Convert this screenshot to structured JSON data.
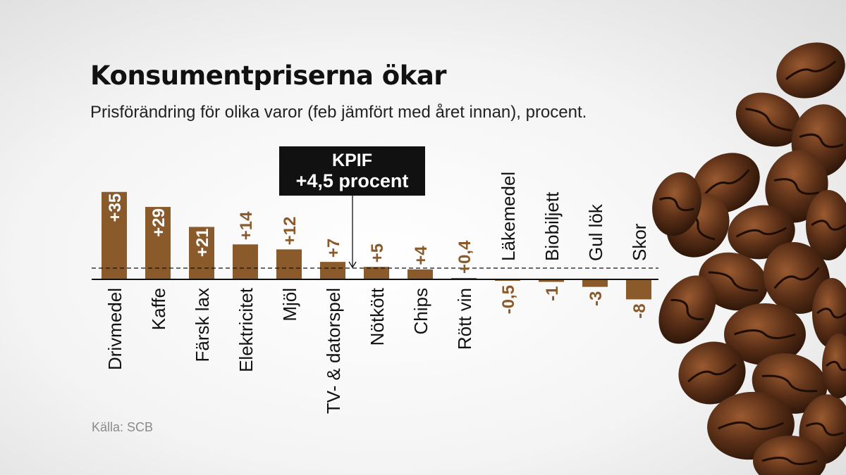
{
  "title": "Konsumentpriserna ökar",
  "subtitle": "Prisförändring för olika varor (feb jämfört med året innan), procent.",
  "source": "Källa: SCB",
  "annotation": {
    "title": "KPIF",
    "value_text": "+4,5 procent",
    "value": 4.5
  },
  "colors": {
    "bar": "#8b5a2b",
    "label_outside": "#8b5a2b",
    "label_inside": "#ffffff",
    "category_text": "#111111"
  },
  "chart_data": {
    "type": "bar",
    "title": "Konsumentpriserna ökar",
    "subtitle": "Prisförändring för olika varor (feb jämfört med året innan), procent.",
    "categories": [
      "Drivmedel",
      "Kaffe",
      "Färsk lax",
      "Elektricitet",
      "Mjöl",
      "TV- & datorspel",
      "Nötkött",
      "Chips",
      "Rött vin",
      "Läkemedel",
      "Biobiljett",
      "Gul lök",
      "Skor"
    ],
    "values": [
      35,
      29,
      21,
      14,
      12,
      7,
      5,
      4,
      0.4,
      -0.5,
      -1,
      -3,
      -8
    ],
    "value_labels": [
      "+35",
      "+29",
      "+21",
      "+14",
      "+12",
      "+7",
      "+5",
      "+4",
      "+0,4",
      "-0,5",
      "-1",
      "-3",
      "-8"
    ],
    "reference_line": {
      "label": "KPIF",
      "value": 4.5
    },
    "grid": false,
    "legend": "none"
  }
}
